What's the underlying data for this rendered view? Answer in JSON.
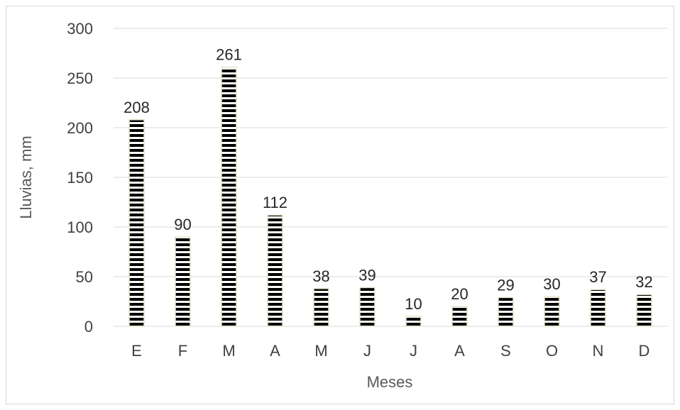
{
  "chart_data": {
    "type": "bar",
    "categories": [
      "E",
      "F",
      "M",
      "A",
      "M",
      "J",
      "J",
      "A",
      "S",
      "O",
      "N",
      "D"
    ],
    "values": [
      208,
      90,
      261,
      112,
      38,
      39,
      10,
      20,
      29,
      30,
      37,
      32
    ],
    "data_labels": [
      "208",
      "90",
      "261",
      "112",
      "38",
      "39",
      "10",
      "20",
      "29",
      "30",
      "37",
      "32"
    ],
    "yticks": [
      "0",
      "50",
      "100",
      "150",
      "200",
      "250",
      "300"
    ],
    "xlabel": "Meses",
    "ylabel": "Lluvias, mm",
    "ylim": [
      0,
      300
    ],
    "grid": true,
    "legend": "none",
    "bar_fill": "black-white horizontal stripes",
    "colors": {
      "stripe_dark": "#000000",
      "stripe_light": "#ffffff",
      "bar_outline": "#e8e4cc",
      "grid": "#d9d9d9"
    }
  }
}
